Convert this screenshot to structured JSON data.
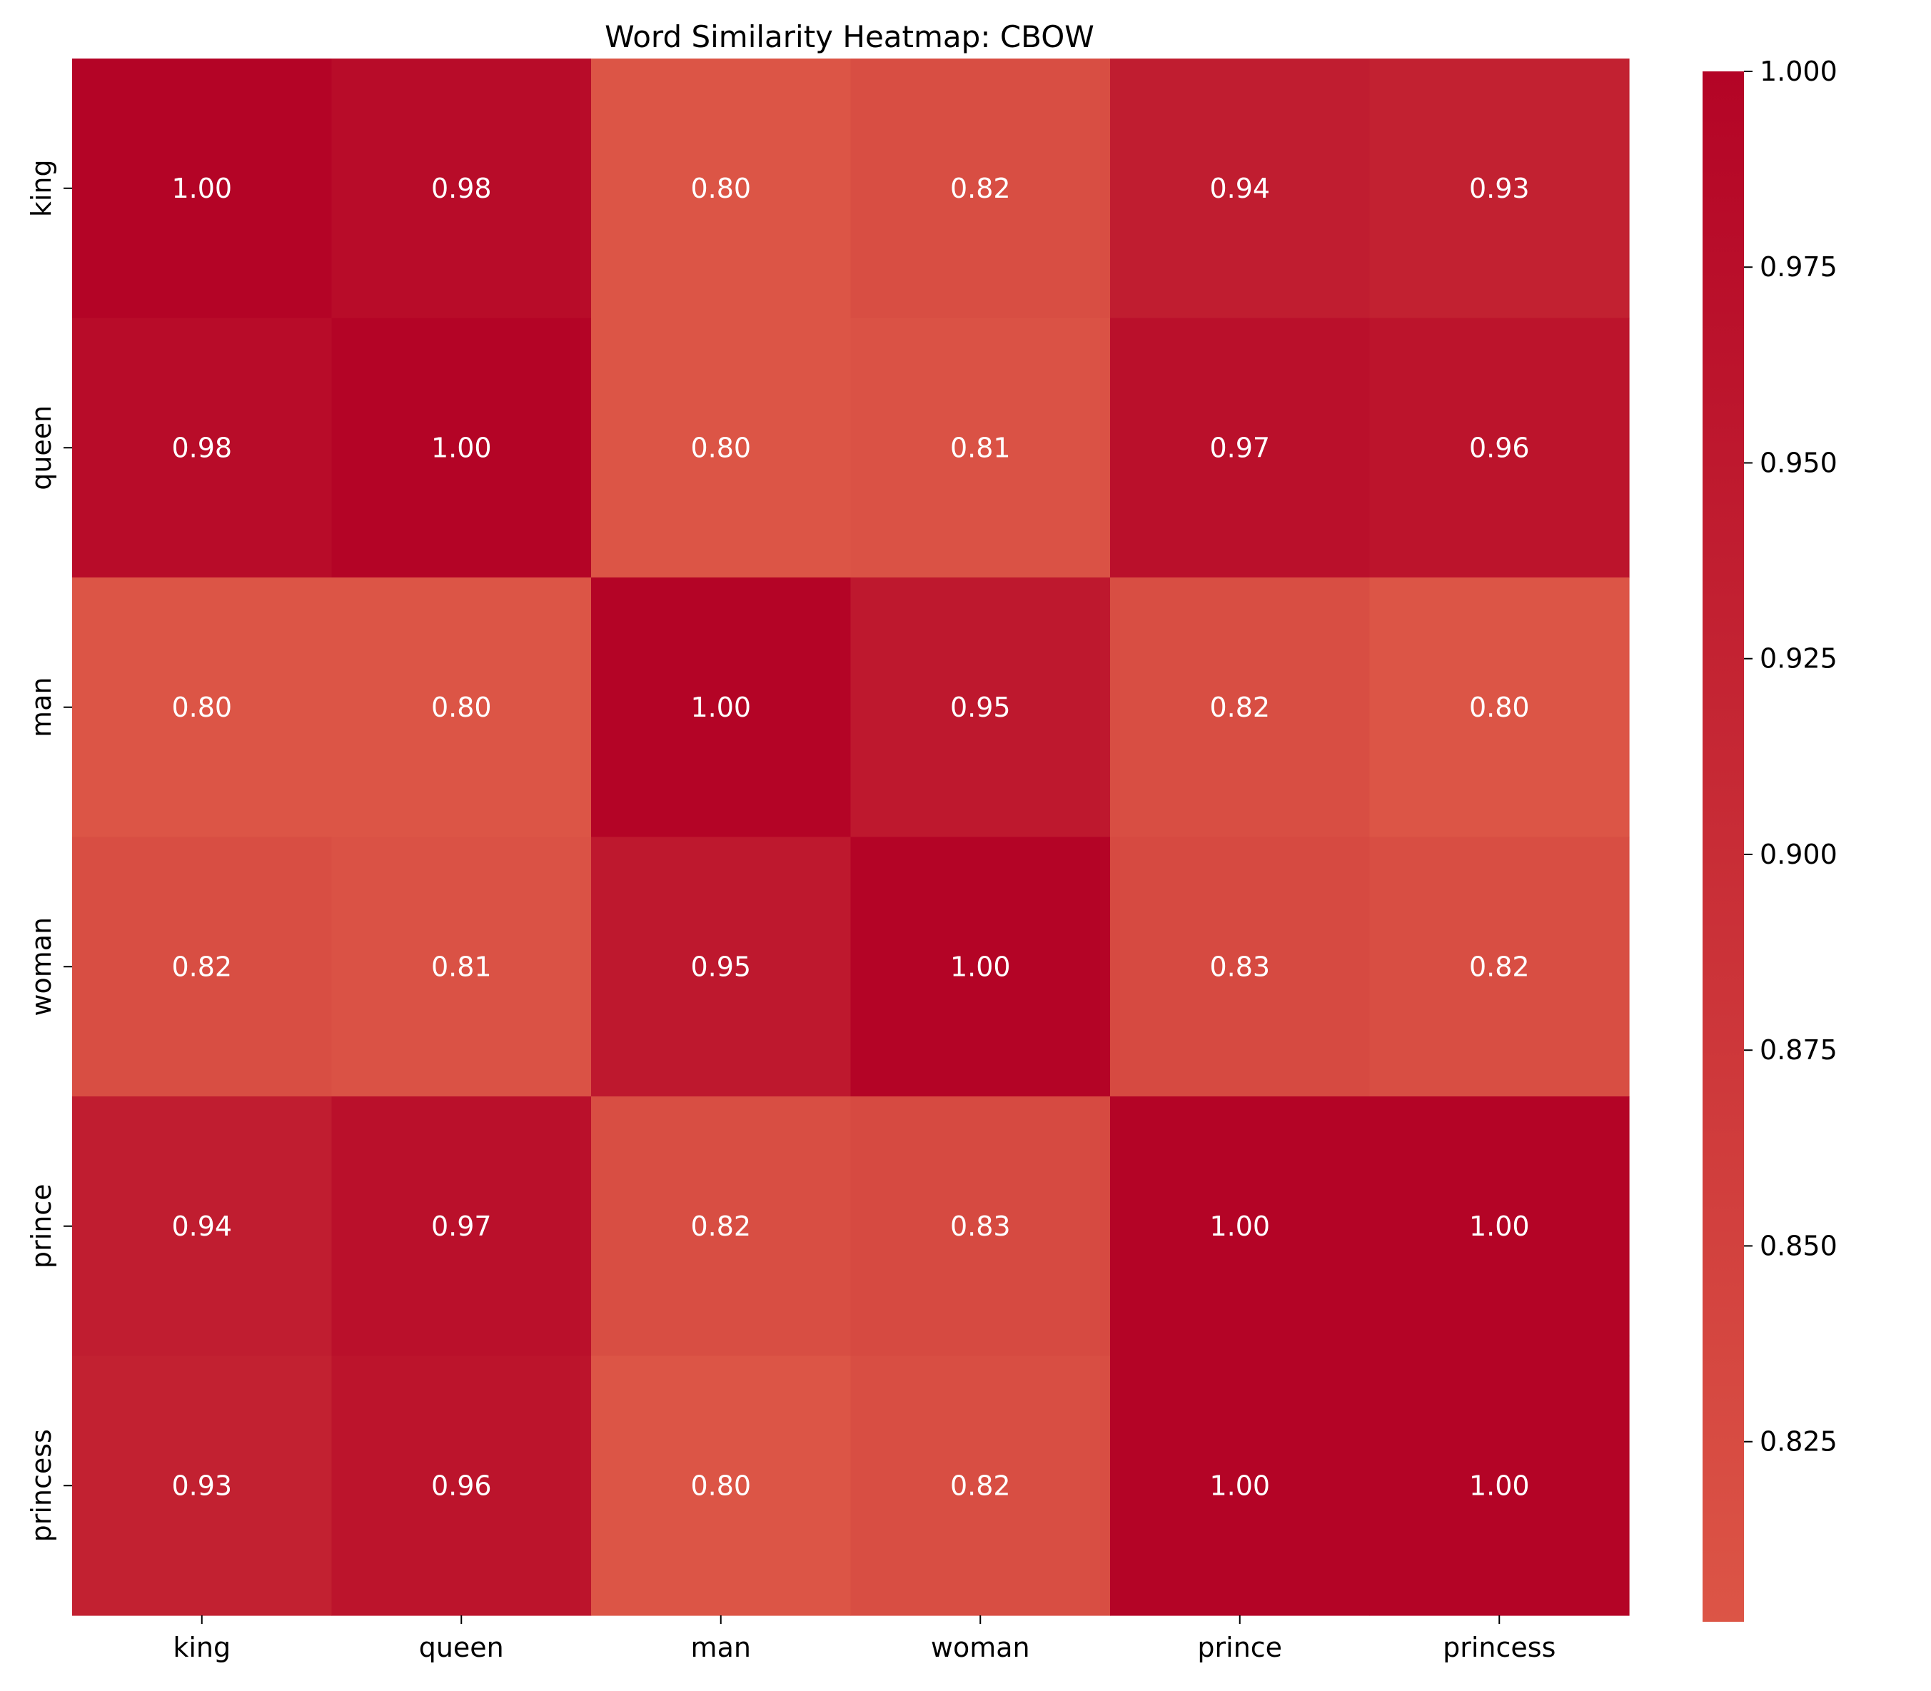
{
  "chart_data": {
    "type": "heatmap",
    "title": "Word Similarity Heatmap: CBOW",
    "xlabel": "",
    "ylabel": "",
    "rows": [
      "king",
      "queen",
      "man",
      "woman",
      "prince",
      "princess"
    ],
    "columns": [
      "king",
      "queen",
      "man",
      "woman",
      "prince",
      "princess"
    ],
    "values": [
      [
        1.0,
        0.98,
        0.8,
        0.82,
        0.94,
        0.93
      ],
      [
        0.98,
        1.0,
        0.8,
        0.81,
        0.97,
        0.96
      ],
      [
        0.8,
        0.8,
        1.0,
        0.95,
        0.82,
        0.8
      ],
      [
        0.82,
        0.81,
        0.95,
        1.0,
        0.83,
        0.82
      ],
      [
        0.94,
        0.97,
        0.82,
        0.83,
        1.0,
        1.0
      ],
      [
        0.93,
        0.96,
        0.8,
        0.82,
        1.0,
        1.0
      ]
    ],
    "value_labels": [
      [
        "1.00",
        "0.98",
        "0.80",
        "0.82",
        "0.94",
        "0.93"
      ],
      [
        "0.98",
        "1.00",
        "0.80",
        "0.81",
        "0.97",
        "0.96"
      ],
      [
        "0.80",
        "0.80",
        "1.00",
        "0.95",
        "0.82",
        "0.80"
      ],
      [
        "0.82",
        "0.81",
        "0.95",
        "1.00",
        "0.83",
        "0.82"
      ],
      [
        "0.94",
        "0.97",
        "0.82",
        "0.83",
        "1.00",
        "1.00"
      ],
      [
        "0.93",
        "0.96",
        "0.80",
        "0.82",
        "1.00",
        "1.00"
      ]
    ],
    "colorbar": {
      "range": [
        0.802,
        1.0
      ],
      "ticks": [
        0.825,
        0.85,
        0.875,
        0.9,
        0.925,
        0.95,
        0.975,
        1.0
      ],
      "tick_labels": [
        "0.825",
        "0.850",
        "0.875",
        "0.900",
        "0.925",
        "0.950",
        "0.975",
        "1.000"
      ],
      "color_low": "#dc5546",
      "color_high": "#b40426"
    },
    "annotation_color": "#ffffff",
    "grid": false,
    "legend": "colorbar-right"
  }
}
